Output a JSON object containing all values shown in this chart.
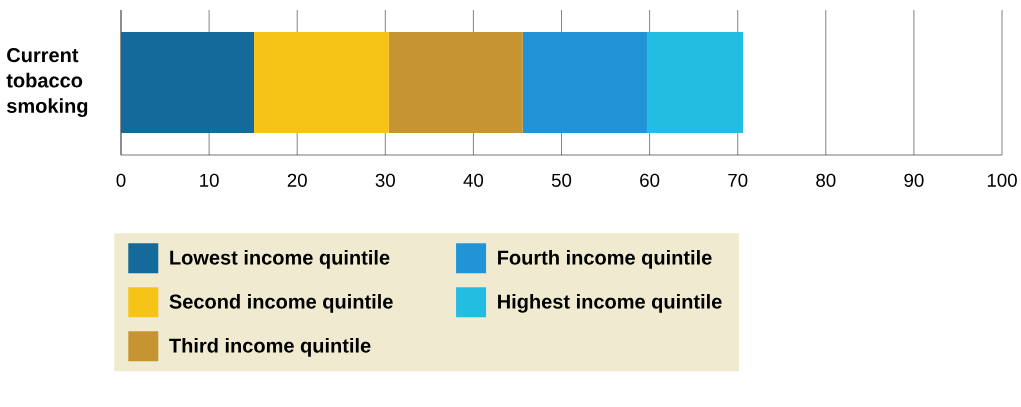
{
  "chart_data": {
    "type": "bar",
    "orientation": "horizontal",
    "stacked": true,
    "categories": [
      "Current tobacco smoking"
    ],
    "series": [
      {
        "name": "Lowest income quintile",
        "color": "#136a9b",
        "values": [
          15.1
        ]
      },
      {
        "name": "Second income quintile",
        "color": "#f6c317",
        "values": [
          15.3
        ]
      },
      {
        "name": "Third income quintile",
        "color": "#c69532",
        "values": [
          15.2
        ]
      },
      {
        "name": "Fourth income quintile",
        "color": "#2094d6",
        "values": [
          14.1
        ]
      },
      {
        "name": "Highest income quintile",
        "color": "#24bde2",
        "values": [
          10.9
        ]
      }
    ],
    "xlim": [
      0,
      100
    ],
    "xticks": [
      0,
      10,
      20,
      30,
      40,
      50,
      60,
      70,
      80,
      90,
      100
    ],
    "grid": "x",
    "legend": "bottom"
  }
}
